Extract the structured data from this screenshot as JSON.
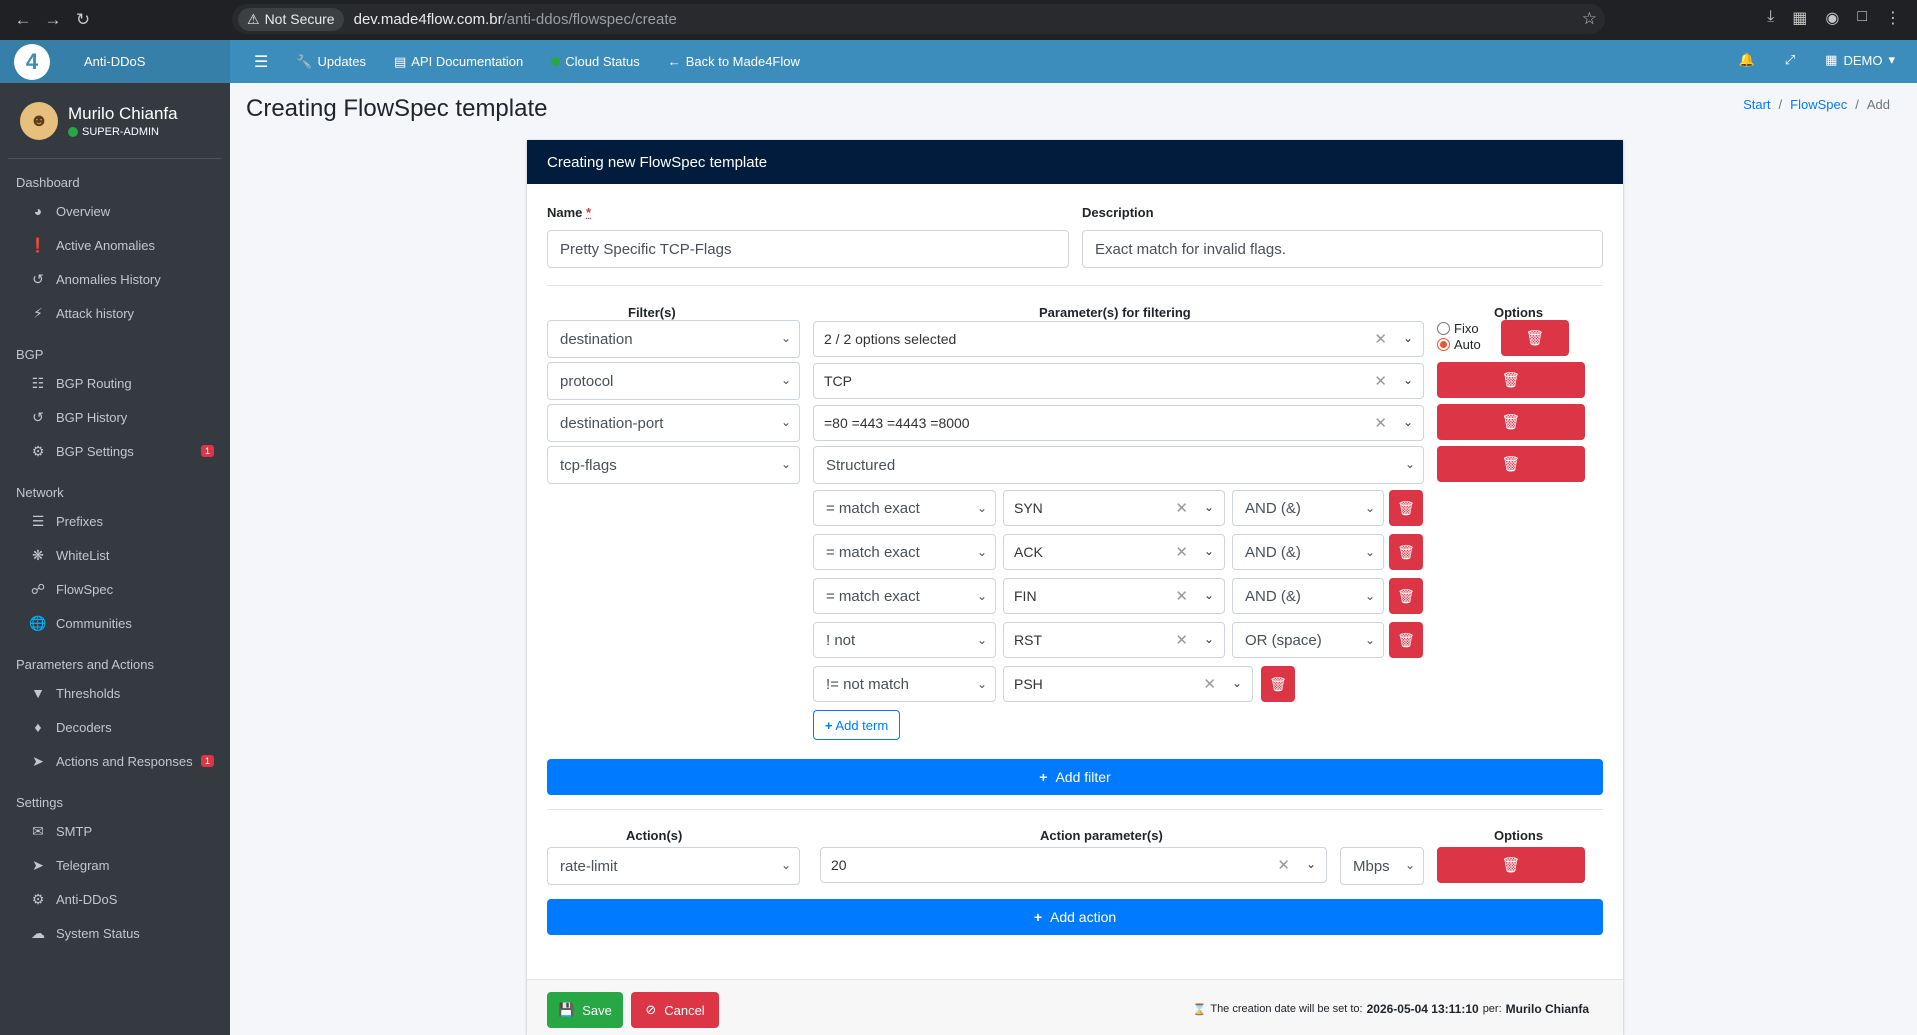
{
  "browser": {
    "not_secure": "Not Secure",
    "url_host": "dev.made4flow.com.br",
    "url_path": "/anti-ddos/flowspec/create"
  },
  "topbar": {
    "brand": "Anti-DDoS",
    "updates": "Updates",
    "api_docs": "API Documentation",
    "cloud_status": "Cloud Status",
    "back": "Back to Made4Flow",
    "account": "DEMO"
  },
  "user": {
    "name": "Murilo Chianfa",
    "role": "SUPER-ADMIN"
  },
  "sidebar": {
    "dashboard": {
      "title": "Dashboard",
      "items": [
        "Overview",
        "Active Anomalies",
        "Anomalies History",
        "Attack history"
      ]
    },
    "bgp": {
      "title": "BGP",
      "items": [
        "BGP Routing",
        "BGP History",
        "BGP Settings"
      ],
      "bgp_settings_badge": "1"
    },
    "network": {
      "title": "Network",
      "items": [
        "Prefixes",
        "WhiteList",
        "FlowSpec",
        "Communities"
      ]
    },
    "params": {
      "title": "Parameters and Actions",
      "items": [
        "Thresholds",
        "Decoders",
        "Actions and Responses"
      ],
      "actions_badge": "1"
    },
    "settings": {
      "title": "Settings",
      "items": [
        "SMTP",
        "Telegram",
        "Anti-DDoS",
        "System Status"
      ]
    }
  },
  "page": {
    "title": "Creating FlowSpec template",
    "breadcrumb": [
      "Start",
      "FlowSpec",
      "Add"
    ]
  },
  "form": {
    "header": "Creating new FlowSpec template",
    "name_label": "Name",
    "name_required": "*",
    "name_value": "Pretty Specific TCP-Flags",
    "description_label": "Description",
    "description_value": "Exact match for invalid flags.",
    "filters_header": "Filter(s)",
    "params_header": "Parameter(s) for filtering",
    "options_header": "Options",
    "radio_fixo": "Fixo",
    "radio_auto": "Auto",
    "filters": [
      {
        "type": "destination",
        "param": "2 / 2 options selected"
      },
      {
        "type": "protocol",
        "param": "TCP"
      },
      {
        "type": "destination-port",
        "param": "=80 =443 =4443 =8000"
      },
      {
        "type": "tcp-flags",
        "param": "Structured"
      }
    ],
    "terms": [
      {
        "op": "= match exact",
        "flag": "SYN",
        "logic": "AND (&)"
      },
      {
        "op": "= match exact",
        "flag": "ACK",
        "logic": "AND (&)"
      },
      {
        "op": "= match exact",
        "flag": "FIN",
        "logic": "AND (&)"
      },
      {
        "op": "! not",
        "flag": "RST",
        "logic": "OR (space)"
      },
      {
        "op": "!= not match",
        "flag": "PSH",
        "logic": ""
      }
    ],
    "add_term": "Add term",
    "add_filter": "Add filter",
    "actions_header": "Action(s)",
    "action_params_header": "Action parameter(s)",
    "action_options_header": "Options",
    "action": {
      "type": "rate-limit",
      "value": "20",
      "unit": "Mbps"
    },
    "add_action": "Add action",
    "save": "Save",
    "cancel": "Cancel",
    "creation_text": "The creation date will be set to:",
    "creation_date": "2026-05-04 13:11:10",
    "creation_per": "per:",
    "creation_user": "Murilo Chianfa"
  },
  "colors": {
    "primary": "#007bff",
    "danger": "#dc3545",
    "success": "#28a745",
    "header": "#011c3d",
    "topbar": "#3c8dbc",
    "sidebar": "#343a40"
  }
}
